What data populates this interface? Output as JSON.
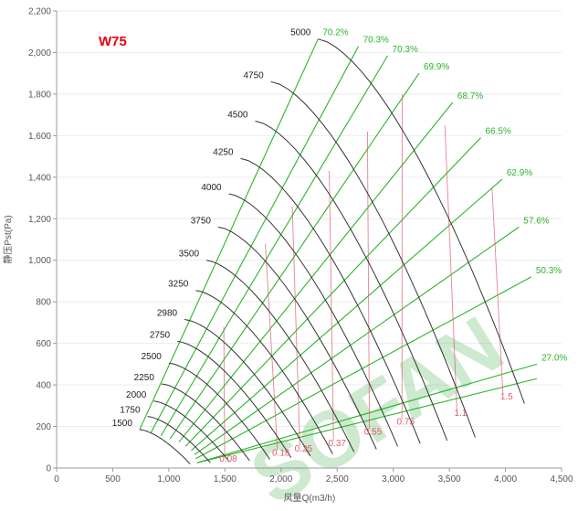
{
  "chart_data": {
    "type": "line",
    "title": "W75",
    "xlabel": "风量Q(m3/h)",
    "ylabel": "静压Pst(Pa)",
    "xlim": [
      0,
      4500
    ],
    "ylim": [
      0,
      2200
    ],
    "x_ticks": [
      "0",
      "500",
      "1,000",
      "1,500",
      "2,000",
      "2,500",
      "3,000",
      "3,500",
      "4,000",
      "4,500"
    ],
    "y_ticks": [
      "0",
      "200",
      "400",
      "600",
      "800",
      "1,000",
      "1,200",
      "1,400",
      "1,600",
      "1,800",
      "2,000",
      "2,200"
    ],
    "grid": true,
    "watermark": "SOFAN",
    "colors": {
      "speed_curve": "#333333",
      "efficiency": "#2ab52a",
      "power": "#e05a6a",
      "title": "#e8000b",
      "watermark": "#22a02a",
      "axis": "#999999",
      "grid": "#ececec"
    },
    "speed_curves": [
      {
        "rpm": "1500",
        "q_start": 740,
        "p_start": 185,
        "q_end": 1190,
        "p_end": 20
      },
      {
        "rpm": "1750",
        "q_start": 810,
        "p_start": 248,
        "q_end": 1370,
        "p_end": 25
      },
      {
        "rpm": "2000",
        "q_start": 865,
        "p_start": 322,
        "q_end": 1540,
        "p_end": 30
      },
      {
        "rpm": "2250",
        "q_start": 935,
        "p_start": 405,
        "q_end": 1720,
        "p_end": 35
      },
      {
        "rpm": "2500",
        "q_start": 1000,
        "p_start": 505,
        "q_end": 1900,
        "p_end": 42
      },
      {
        "rpm": "2750",
        "q_start": 1075,
        "p_start": 610,
        "q_end": 2090,
        "p_end": 50
      },
      {
        "rpm": "2980",
        "q_start": 1140,
        "p_start": 715,
        "q_end": 2260,
        "p_end": 58
      },
      {
        "rpm": "3250",
        "q_start": 1240,
        "p_start": 855,
        "q_end": 2460,
        "p_end": 68
      },
      {
        "rpm": "3500",
        "q_start": 1335,
        "p_start": 1000,
        "q_end": 2650,
        "p_end": 78
      },
      {
        "rpm": "3750",
        "q_start": 1440,
        "p_start": 1160,
        "q_end": 2850,
        "p_end": 90
      },
      {
        "rpm": "4000",
        "q_start": 1535,
        "p_start": 1320,
        "q_end": 3040,
        "p_end": 104
      },
      {
        "rpm": "4250",
        "q_start": 1640,
        "p_start": 1490,
        "q_end": 3240,
        "p_end": 118
      },
      {
        "rpm": "4500",
        "q_start": 1770,
        "p_start": 1670,
        "q_end": 3480,
        "p_end": 132
      },
      {
        "rpm": "4750",
        "q_start": 1910,
        "p_start": 1860,
        "q_end": 3730,
        "p_end": 148
      },
      {
        "rpm": "5000",
        "q_start": 2330,
        "p_start": 2065,
        "q_end": 4170,
        "p_end": 310
      }
    ],
    "efficiency_labels": [
      "70.2%",
      "70.3%",
      "70.3%",
      "69.9%",
      "68.7%",
      "66.5%",
      "62.9%",
      "57.6%",
      "50.3%",
      "27.0%"
    ],
    "efficiency_lines": [
      {
        "label": "70.2%",
        "q_top": 2330,
        "p_top": 2065,
        "q_bot": 740,
        "p_bot": 185
      },
      {
        "label": "70.3%",
        "q_top": 2690,
        "p_top": 2030,
        "q_bot": 840,
        "p_bot": 170
      },
      {
        "label": "70.3%",
        "q_top": 2950,
        "p_top": 1985,
        "q_bot": 930,
        "p_bot": 155
      },
      {
        "label": "69.9%",
        "q_top": 3230,
        "p_top": 1900,
        "q_bot": 1010,
        "p_bot": 140
      },
      {
        "label": "68.7%",
        "q_top": 3530,
        "p_top": 1760,
        "q_bot": 1090,
        "p_bot": 125
      },
      {
        "label": "66.5%",
        "q_top": 3780,
        "p_top": 1590,
        "q_bot": 1150,
        "p_bot": 105
      },
      {
        "label": "62.9%",
        "q_top": 3970,
        "p_top": 1390,
        "q_bot": 1200,
        "p_bot": 85
      },
      {
        "label": "57.6%",
        "q_top": 4120,
        "p_top": 1160,
        "q_bot": 1230,
        "p_bot": 65
      },
      {
        "label": "50.3%",
        "q_top": 4230,
        "p_top": 920,
        "q_bot": 1240,
        "p_bot": 45
      },
      {
        "label": "27.0%",
        "q_top": 4280,
        "p_top": 500,
        "q_bot": 1250,
        "p_bot": 25
      }
    ],
    "power_lines": [
      {
        "label": "0.08",
        "q_label": 1530,
        "p_label": 30,
        "q_top": 1490,
        "p_top": 680
      },
      {
        "label": "0.18",
        "q_label": 2000,
        "p_label": 60,
        "q_top": 1860,
        "p_top": 1080
      },
      {
        "label": "0.25",
        "q_label": 2200,
        "p_label": 80,
        "q_top": 2100,
        "p_top": 1260
      },
      {
        "label": "0.37",
        "q_label": 2500,
        "p_label": 105,
        "q_top": 2430,
        "p_top": 1430
      },
      {
        "label": "0.55",
        "q_label": 2820,
        "p_label": 160,
        "q_top": 2770,
        "p_top": 1620
      },
      {
        "label": "0.75",
        "q_label": 3110,
        "p_label": 210,
        "q_top": 3080,
        "p_top": 1800
      },
      {
        "label": "1.1",
        "q_label": 3600,
        "p_label": 250,
        "q_top": 3460,
        "p_top": 1650
      },
      {
        "label": "1.5",
        "q_label": 4010,
        "p_label": 330,
        "q_top": 3880,
        "p_top": 1350
      }
    ]
  }
}
